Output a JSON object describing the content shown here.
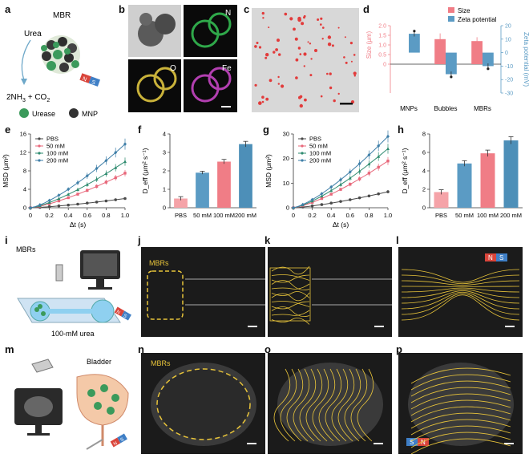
{
  "panel_letters": {
    "a": "a",
    "b": "b",
    "c": "c",
    "d": "d",
    "e": "e",
    "f": "f",
    "g": "g",
    "h": "h",
    "i": "i",
    "j": "j",
    "k": "k",
    "l": "l",
    "m": "m",
    "n": "n",
    "o": "o",
    "p": "p"
  },
  "schematic_a": {
    "title": "MBR",
    "urea": "Urea",
    "products_pre": "2NH",
    "products_sub1": "3",
    "products_mid": " + CO",
    "products_sub2": "2",
    "legend_urease": "Urease",
    "legend_mnp": "MNP",
    "magnet_n": "N",
    "magnet_s": "S"
  },
  "panel_b": {
    "labels": [
      "N",
      "O",
      "Fe"
    ]
  },
  "schematic_i": {
    "mbrs": "MBRs",
    "urea": "100-mM urea",
    "magnet_n": "N",
    "magnet_s": "S"
  },
  "schematic_m": {
    "bladder": "Bladder",
    "magnet_n": "N",
    "magnet_s": "S"
  },
  "us_labels": {
    "j": "MBRs",
    "n": "MBRs",
    "l_n": "N",
    "l_s": "S",
    "p_s": "S",
    "p_n": "N"
  },
  "colors": {
    "pbs": "#4a4a4a",
    "mm50": "#e8677a",
    "mm100": "#2e8b6f",
    "mm200": "#3f7fa8",
    "size": "#f07d86",
    "zeta": "#5b9bc4",
    "tracks": "#e8c43a"
  },
  "chart_data": [
    {
      "id": "d",
      "type": "bar",
      "categories": [
        "MNPs",
        "Bubbles",
        "MBRs"
      ],
      "series": [
        {
          "name": "Size",
          "axis": "left",
          "values": [
            0,
            1.3,
            1.2
          ],
          "errors": [
            0,
            0.3,
            0.2
          ]
        },
        {
          "name": "Zeta potential",
          "axis": "right",
          "values": [
            14,
            -16,
            -10
          ],
          "errors": [
            2,
            2,
            2
          ]
        }
      ],
      "ylabel": "Size (μm)",
      "y2label": "Zeta potential (mV)",
      "ylim": [
        -1.5,
        2.0
      ],
      "y2lim": [
        -30,
        20
      ],
      "yticks": [
        0,
        0.5,
        1.0,
        1.5,
        2.0
      ],
      "y2ticks": [
        -30,
        -20,
        -10,
        0,
        10,
        20
      ],
      "legend_position": "top-right"
    },
    {
      "id": "e",
      "type": "line",
      "xlabel": "Δt (s)",
      "ylabel": "MSD (μm²)",
      "xlim": [
        0,
        1.0
      ],
      "ylim": [
        0,
        16
      ],
      "xticks": [
        0,
        0.2,
        0.4,
        0.6,
        0.8,
        1.0
      ],
      "yticks": [
        0,
        4,
        8,
        12,
        16
      ],
      "series": [
        {
          "name": "PBS",
          "slope": 2.0
        },
        {
          "name": "50 mM",
          "slope": 7.5
        },
        {
          "name": "100 mM",
          "slope": 10.0
        },
        {
          "name": "200 mM",
          "slope": 13.8
        }
      ],
      "legend_position": "top-left"
    },
    {
      "id": "f",
      "type": "bar",
      "categories": [
        "PBS",
        "50 mM",
        "100 mM",
        "200 mM"
      ],
      "values": [
        0.5,
        1.9,
        2.5,
        3.45
      ],
      "errors": [
        0.1,
        0.08,
        0.12,
        0.15
      ],
      "ylabel": "D_eff (μm² s⁻¹)",
      "ylim": [
        0,
        4
      ],
      "yticks": [
        0,
        1,
        2,
        3,
        4
      ]
    },
    {
      "id": "g",
      "type": "line",
      "xlabel": "Δt (s)",
      "ylabel": "MSD (μm²)",
      "xlim": [
        0,
        1.0
      ],
      "ylim": [
        0,
        30
      ],
      "xticks": [
        0,
        0.2,
        0.4,
        0.6,
        0.8,
        1.0
      ],
      "yticks": [
        0,
        10,
        20,
        30
      ],
      "series": [
        {
          "name": "PBS",
          "slope": 6.5
        },
        {
          "name": "50 mM",
          "slope": 19.0
        },
        {
          "name": "100 mM",
          "slope": 24.0
        },
        {
          "name": "200 mM",
          "slope": 29.0
        }
      ],
      "legend_position": "top-left"
    },
    {
      "id": "h",
      "type": "bar",
      "categories": [
        "PBS",
        "50 mM",
        "100 mM",
        "200 mM"
      ],
      "values": [
        1.7,
        4.8,
        5.9,
        7.3
      ],
      "errors": [
        0.25,
        0.3,
        0.35,
        0.4
      ],
      "ylabel": "D_eff (μm² s⁻¹)",
      "ylim": [
        0,
        8
      ],
      "yticks": [
        0,
        2,
        4,
        6,
        8
      ]
    }
  ]
}
